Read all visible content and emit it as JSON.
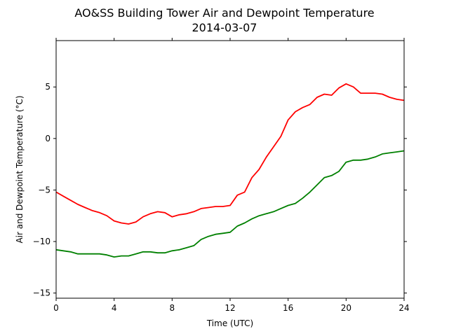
{
  "chart_data": {
    "type": "line",
    "title": "AO&SS Building Tower Air and Dewpoint Temperature",
    "subtitle": "2014-03-07",
    "xlabel": "Time (UTC)",
    "ylabel": "Air and Dewpoint Temperature (°C)",
    "xlim": [
      0,
      24
    ],
    "ylim": [
      -15.5,
      9.5
    ],
    "xticks": [
      0,
      4,
      8,
      12,
      16,
      20,
      24
    ],
    "yticks": [
      -15,
      -10,
      -5,
      0,
      5
    ],
    "grid": false,
    "legend": "none",
    "series": [
      {
        "color": "#ff0000",
        "x": [
          0,
          0.5,
          1,
          1.5,
          2,
          2.5,
          3,
          3.5,
          4,
          4.5,
          5,
          5.5,
          6,
          6.5,
          7,
          7.5,
          8,
          8.5,
          9,
          9.5,
          10,
          10.5,
          11,
          11.5,
          12,
          12.5,
          13,
          13.5,
          14,
          14.5,
          15,
          15.5,
          16,
          16.5,
          17,
          17.5,
          18,
          18.5,
          19,
          19.5,
          20,
          20.5,
          21,
          21.5,
          22,
          22.5,
          23,
          23.5,
          24
        ],
        "y": [
          -5.2,
          -5.6,
          -6.0,
          -6.4,
          -6.7,
          -7.0,
          -7.2,
          -7.5,
          -8.0,
          -8.2,
          -8.3,
          -8.1,
          -7.6,
          -7.3,
          -7.1,
          -7.2,
          -7.6,
          -7.4,
          -7.3,
          -7.1,
          -6.8,
          -6.7,
          -6.6,
          -6.6,
          -6.5,
          -5.5,
          -5.2,
          -3.8,
          -3.0,
          -1.8,
          -0.8,
          0.2,
          1.8,
          2.6,
          3.0,
          3.3,
          4.0,
          4.3,
          4.2,
          4.9,
          5.3,
          5.0,
          4.4,
          4.4,
          4.4,
          4.3,
          4.0,
          3.8,
          3.7
        ]
      },
      {
        "color": "#008000",
        "x": [
          0,
          0.5,
          1,
          1.5,
          2,
          2.5,
          3,
          3.5,
          4,
          4.5,
          5,
          5.5,
          6,
          6.5,
          7,
          7.5,
          8,
          8.5,
          9,
          9.5,
          10,
          10.5,
          11,
          11.5,
          12,
          12.5,
          13,
          13.5,
          14,
          14.5,
          15,
          15.5,
          16,
          16.5,
          17,
          17.5,
          18,
          18.5,
          19,
          19.5,
          20,
          20.5,
          21,
          21.5,
          22,
          22.5,
          23,
          23.5,
          24
        ],
        "y": [
          -10.8,
          -10.9,
          -11.0,
          -11.2,
          -11.2,
          -11.2,
          -11.2,
          -11.3,
          -11.5,
          -11.4,
          -11.4,
          -11.2,
          -11.0,
          -11.0,
          -11.1,
          -11.1,
          -10.9,
          -10.8,
          -10.6,
          -10.4,
          -9.8,
          -9.5,
          -9.3,
          -9.2,
          -9.1,
          -8.5,
          -8.2,
          -7.8,
          -7.5,
          -7.3,
          -7.1,
          -6.8,
          -6.5,
          -6.3,
          -5.8,
          -5.2,
          -4.5,
          -3.8,
          -3.6,
          -3.2,
          -2.3,
          -2.1,
          -2.1,
          -2.0,
          -1.8,
          -1.5,
          -1.4,
          -1.3,
          -1.2
        ]
      }
    ]
  }
}
